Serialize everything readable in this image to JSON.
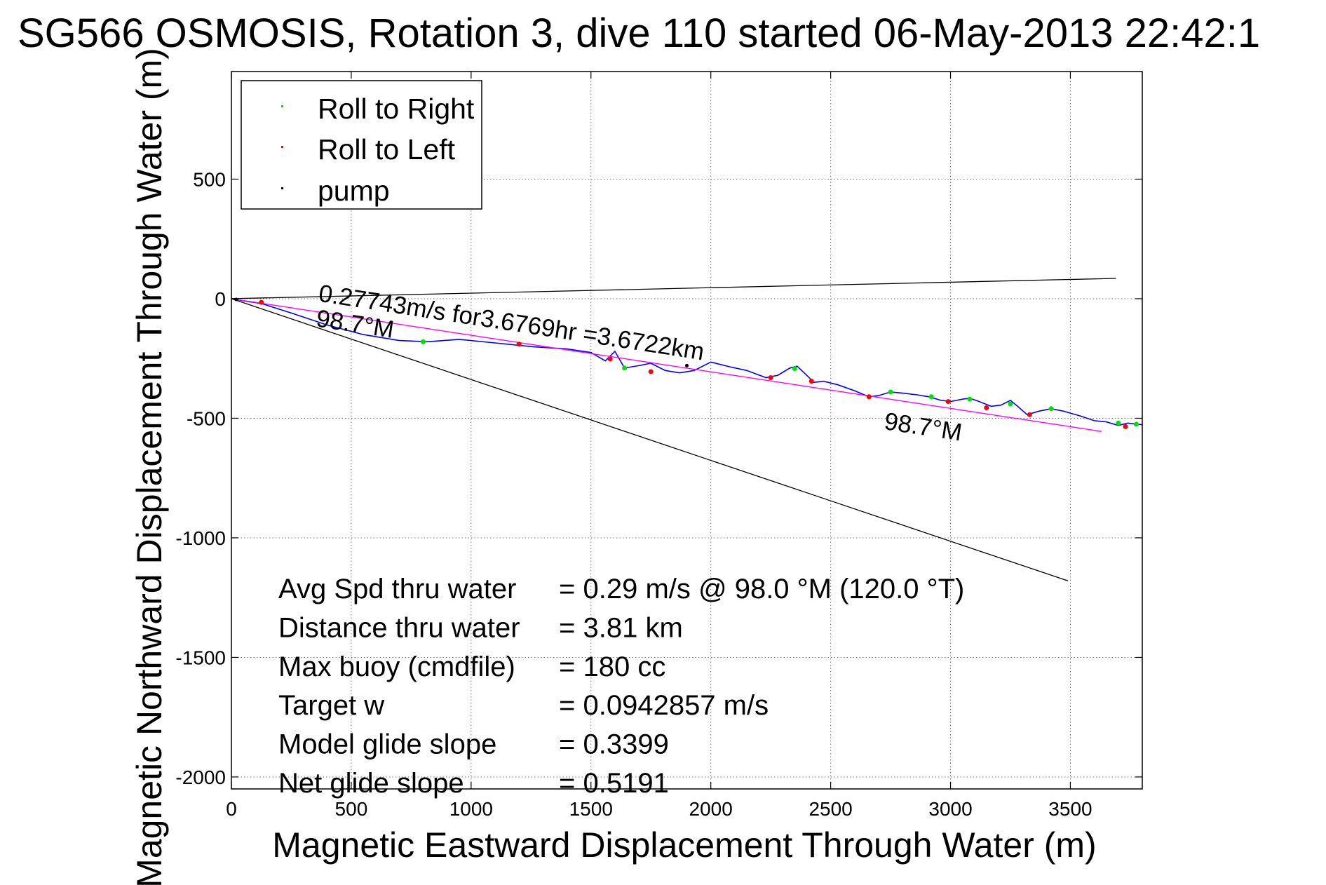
{
  "chart_data": {
    "type": "line",
    "title": "SG566 OSMOSIS, Rotation 3, dive 110 started 06-May-2013 22:42:1",
    "xlabel": "Magnetic Eastward Displacement Through Water (m)",
    "ylabel": "Magnetic Northward Displacement Through Water (m)",
    "xlim": [
      0,
      3800
    ],
    "ylim": [
      -2050,
      950
    ],
    "xticks": [
      0,
      500,
      1000,
      1500,
      2000,
      2500,
      3000,
      3500
    ],
    "xtick_labels": [
      "0",
      "500",
      "1000",
      "1500",
      "2000",
      "2500",
      "3000",
      "3500"
    ],
    "yticks": [
      500,
      0,
      -500,
      -1000,
      -1500,
      -2000
    ],
    "ytick_labels": [
      "500",
      "0",
      "-500",
      "-1000",
      "-1500",
      "-2000"
    ],
    "grid": true,
    "legend_position": "top-left",
    "legend": [
      {
        "label": "Roll to Right",
        "color": "#00e000"
      },
      {
        "label": "Roll to Left",
        "color": "#ff0000"
      },
      {
        "label": "pump",
        "color": "#000000"
      }
    ],
    "series": [
      {
        "name": "track",
        "role": "glider-track",
        "color": "#0000ff",
        "x": [
          0,
          60,
          125,
          250,
          400,
          550,
          700,
          820,
          950,
          1100,
          1250,
          1400,
          1500,
          1560,
          1600,
          1640,
          1700,
          1750,
          1810,
          1870,
          1930,
          2000,
          2080,
          2150,
          2230,
          2280,
          2330,
          2360,
          2400,
          2430,
          2470,
          2530,
          2600,
          2660,
          2700,
          2750,
          2800,
          2860,
          2910,
          2960,
          3000,
          3050,
          3080,
          3120,
          3170,
          3210,
          3250,
          3280,
          3320,
          3370,
          3420,
          3470,
          3540,
          3600,
          3650,
          3700,
          3740,
          3780,
          3800
        ],
        "y": [
          0,
          -10,
          -20,
          -60,
          -110,
          -150,
          -175,
          -180,
          -170,
          -185,
          -200,
          -210,
          -225,
          -260,
          -220,
          -290,
          -280,
          -270,
          -300,
          -310,
          -300,
          -265,
          -285,
          -300,
          -330,
          -320,
          -290,
          -282,
          -320,
          -350,
          -345,
          -360,
          -385,
          -410,
          -405,
          -390,
          -395,
          -402,
          -410,
          -425,
          -430,
          -420,
          -416,
          -430,
          -450,
          -445,
          -425,
          -450,
          -485,
          -470,
          -460,
          -470,
          -490,
          -510,
          -515,
          -530,
          -520,
          -525,
          -527
        ]
      },
      {
        "name": "Roll to Right",
        "role": "markers",
        "color": "#00e000",
        "x": [
          800,
          1640,
          2350,
          2750,
          2920,
          3080,
          3250,
          3420,
          3700,
          3775
        ],
        "y": [
          -180,
          -290,
          -292,
          -390,
          -410,
          -420,
          -440,
          -460,
          -520,
          -525
        ]
      },
      {
        "name": "Roll to Left",
        "role": "markers",
        "color": "#ff0000",
        "x": [
          125,
          1200,
          1580,
          1750,
          2250,
          2420,
          2660,
          2990,
          3150,
          3330,
          3730
        ],
        "y": [
          -15,
          -190,
          -252,
          -305,
          -330,
          -345,
          -410,
          -430,
          -456,
          -485,
          -535
        ]
      },
      {
        "name": "pump",
        "role": "markers",
        "color": "#000000",
        "x": [
          20,
          1900
        ],
        "y": [
          -3,
          -280
        ]
      },
      {
        "name": "average",
        "role": "fit-line",
        "color": "#ff00ff",
        "x": [
          0,
          3630
        ],
        "y": [
          0,
          -555
        ]
      },
      {
        "name": "heading-upper",
        "role": "reference-line",
        "color": "#000000",
        "x": [
          0,
          3690
        ],
        "y": [
          0,
          85
        ]
      },
      {
        "name": "heading-lower",
        "role": "reference-line",
        "color": "#000000",
        "x": [
          0,
          3490
        ],
        "y": [
          0,
          -1180
        ]
      }
    ],
    "annotations": [
      {
        "text": "0.27743m/s for3.6769hr =3.6722km",
        "x": 360,
        "y": -10,
        "angle_deg": 8.7,
        "role": "speed"
      },
      {
        "text": "98.7°M",
        "x": 350,
        "y": -115,
        "angle_deg": 8.7,
        "role": "heading-near"
      },
      {
        "text": "98.7°M",
        "x": 2720,
        "y": -545,
        "angle_deg": 8.7,
        "role": "heading-far"
      }
    ],
    "stats": [
      {
        "label": "Avg Spd thru water",
        "value": "=  0.29 m/s @  98.0 °M (120.0 °T)"
      },
      {
        "label": "Distance thru water",
        "value": "=  3.81 km"
      },
      {
        "label": "Max buoy (cmdfile)",
        "value": "= 180 cc"
      },
      {
        "label": "Target w",
        "value": "= 0.0942857 m/s"
      },
      {
        "label": "Model glide slope",
        "value": "= 0.3399"
      },
      {
        "label": "Net glide slope",
        "value": "= 0.5191"
      }
    ]
  }
}
